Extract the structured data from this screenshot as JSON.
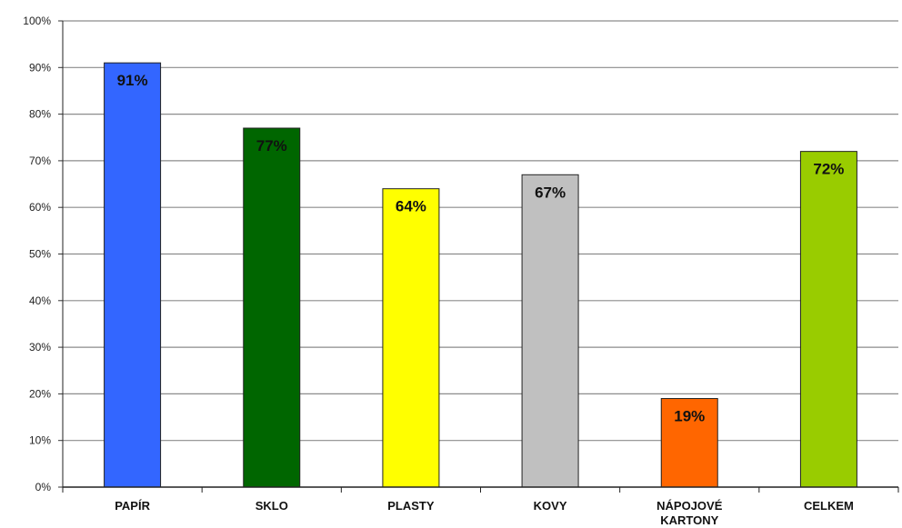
{
  "chart_data": {
    "type": "bar",
    "categories": [
      "PAPÍR",
      "SKLO",
      "PLASTY",
      "KOVY",
      "NÁPOJOVÉ KARTONY",
      "CELKEM"
    ],
    "category_lines": [
      [
        "PAPÍR"
      ],
      [
        "SKLO"
      ],
      [
        "PLASTY"
      ],
      [
        "KOVY"
      ],
      [
        "NÁPOJOVÉ",
        "KARTONY"
      ],
      [
        "CELKEM"
      ]
    ],
    "values": [
      91,
      77,
      64,
      67,
      19,
      72
    ],
    "data_labels": [
      "91%",
      "77%",
      "64%",
      "67%",
      "19%",
      "72%"
    ],
    "bar_colors": [
      "#3366ff",
      "#006600",
      "#ffff00",
      "#c0c0c0",
      "#ff6600",
      "#99cc00"
    ],
    "y_ticks": [
      0,
      10,
      20,
      30,
      40,
      50,
      60,
      70,
      80,
      90,
      100
    ],
    "y_tick_labels": [
      "0%",
      "10%",
      "20%",
      "30%",
      "40%",
      "50%",
      "60%",
      "70%",
      "80%",
      "90%",
      "100%"
    ],
    "ylim": [
      0,
      100
    ],
    "grid": true,
    "legend": "none",
    "title": "",
    "xlabel": "",
    "ylabel": ""
  }
}
